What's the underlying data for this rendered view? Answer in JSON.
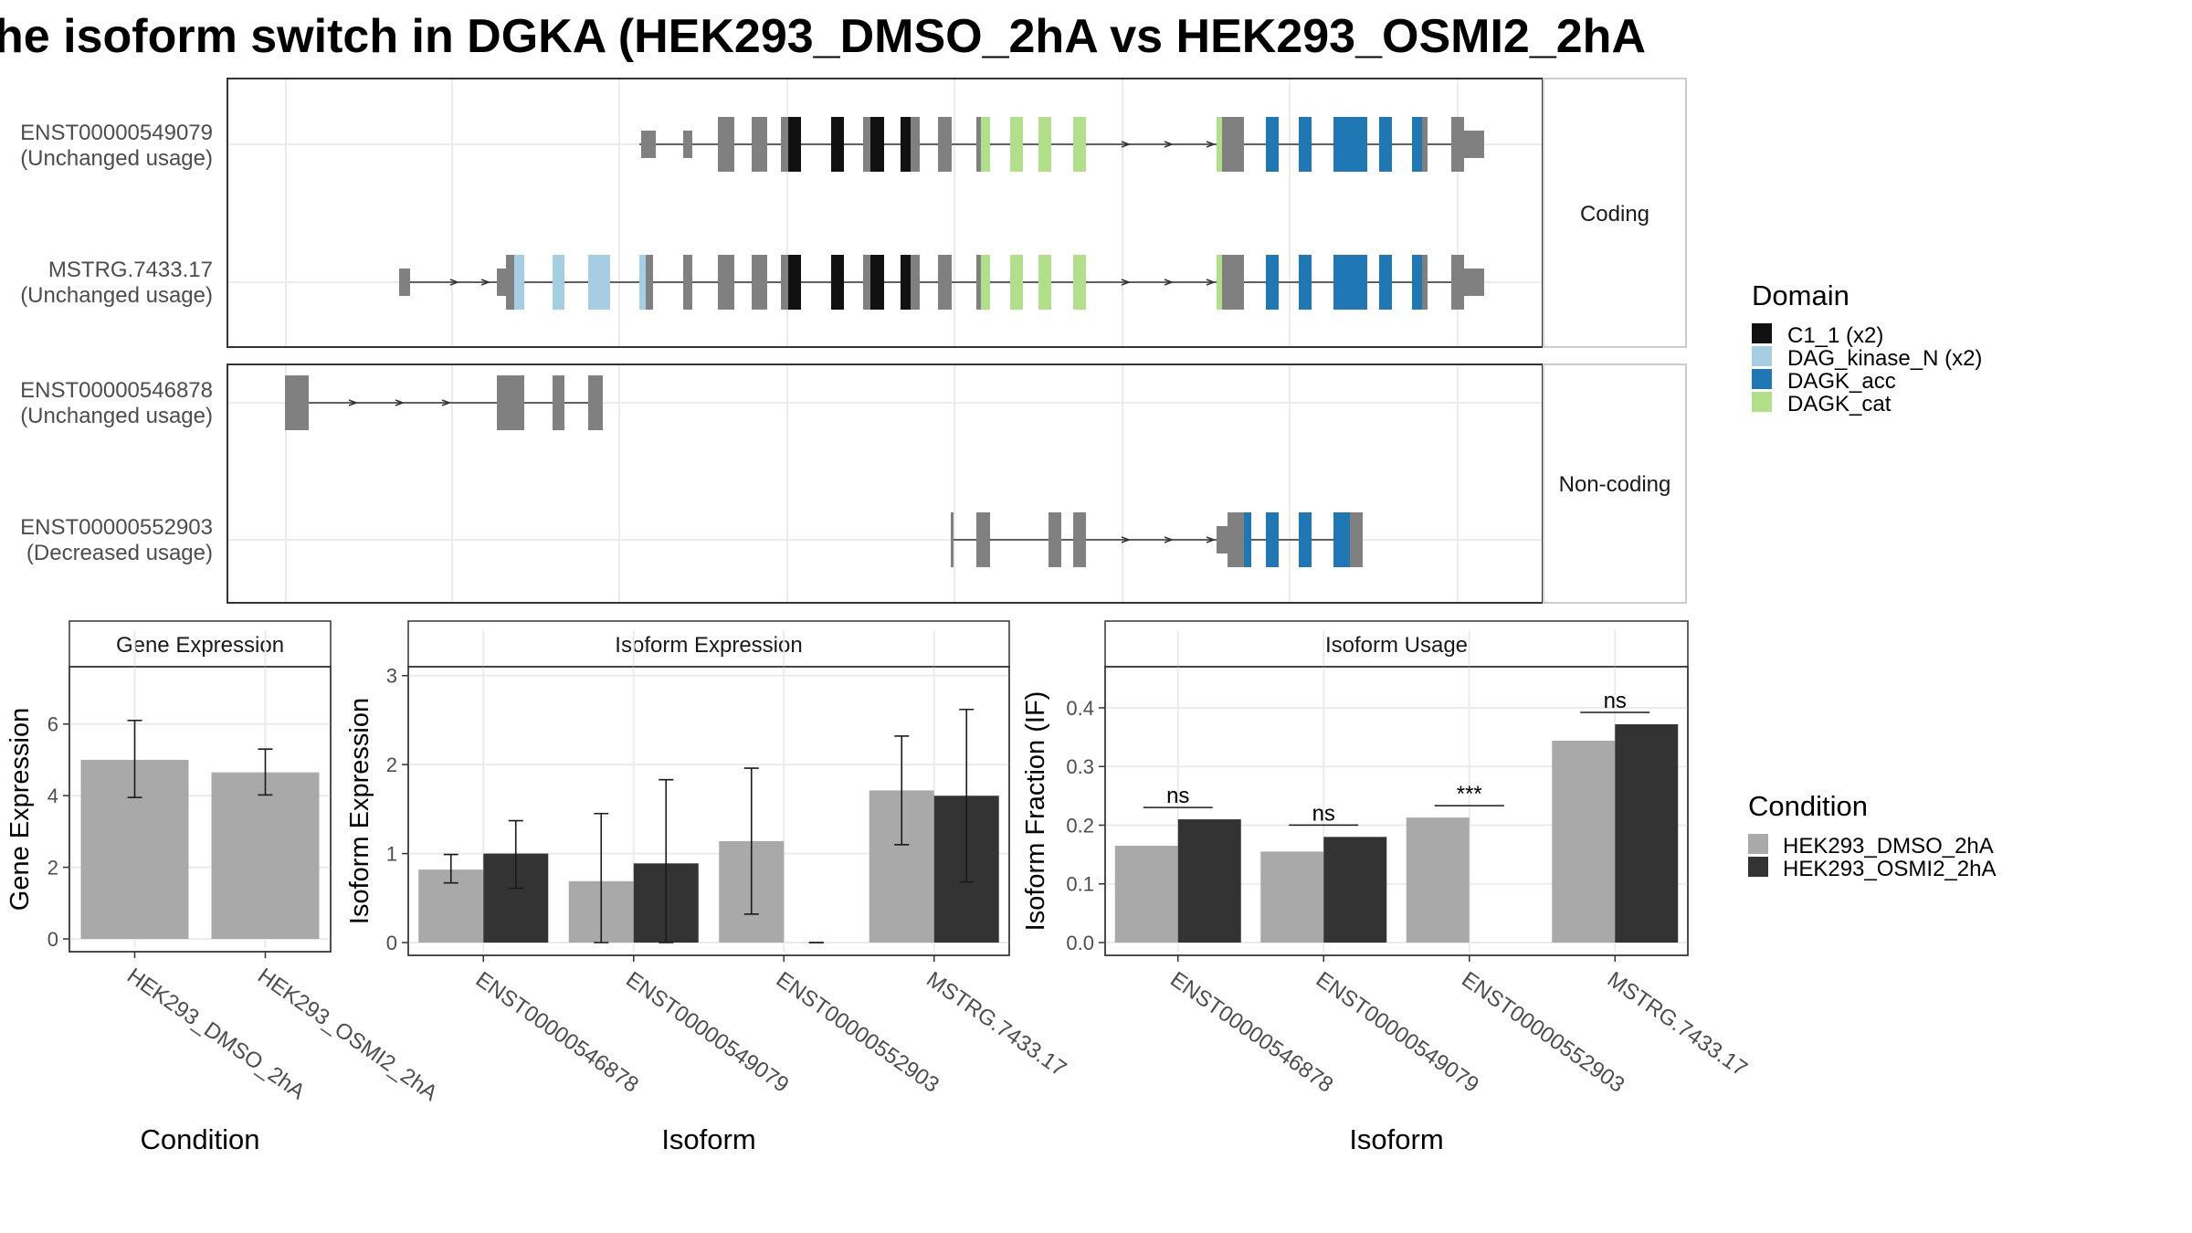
{
  "title": "he isoform switch in DGKA (HEK293_DMSO_2hA vs HEK293_OSMI2_2hA",
  "colors": {
    "exon_grey": "#808080",
    "C1_1": "#111111",
    "DAG_kinase_N": "#a6cee3",
    "DAGK_acc": "#1f78b4",
    "DAGK_cat": "#b2df8a",
    "cond_dmso": "#a9a9a9",
    "cond_osmi": "#333333",
    "grid": "#ebebeb",
    "strip_bg": "#ffffff",
    "panel_border": "#333333"
  },
  "transcripts": {
    "strips": [
      "Coding",
      "Non-coding"
    ],
    "rows": [
      {
        "id": "ENST00000549079",
        "usage": "(Unchanged usage)",
        "group": "Coding"
      },
      {
        "id": "MSTRG.7433.17",
        "usage": "(Unchanged usage)",
        "group": "Coding"
      },
      {
        "id": "ENST00000546878",
        "usage": "(Unchanged usage)",
        "group": "Non-coding"
      },
      {
        "id": "ENST00000552903",
        "usage": "(Decreased usage)",
        "group": "Non-coding"
      }
    ]
  },
  "legend_domain": {
    "title": "Domain",
    "items": [
      {
        "label": "C1_1 (x2)",
        "color": "#111111"
      },
      {
        "label": "DAG_kinase_N (x2)",
        "color": "#a6cee3"
      },
      {
        "label": "DAGK_acc",
        "color": "#1f78b4"
      },
      {
        "label": "DAGK_cat",
        "color": "#b2df8a"
      }
    ]
  },
  "legend_condition": {
    "title": "Condition",
    "items": [
      {
        "label": "HEK293_DMSO_2hA",
        "color": "#a9a9a9"
      },
      {
        "label": "HEK293_OSMI2_2hA",
        "color": "#333333"
      }
    ]
  },
  "chart_data": [
    {
      "type": "bar",
      "title": "Gene Expression",
      "xlabel": "Condition",
      "ylabel": "Gene Expression",
      "ylim": [
        0,
        7.6
      ],
      "yticks": [
        0,
        2,
        4,
        6
      ],
      "categories": [
        "HEK293_DMSO_2hA",
        "HEK293_OSMI2_2hA"
      ],
      "values": [
        5.0,
        4.65
      ],
      "err_low": [
        3.95,
        4.02
      ],
      "err_high": [
        6.1,
        5.3
      ]
    },
    {
      "type": "bar",
      "title": "Isoform Expression",
      "xlabel": "Isoform",
      "ylabel": "Isoform Expression",
      "ylim": [
        0,
        3.1
      ],
      "yticks": [
        0,
        1,
        2,
        3
      ],
      "categories": [
        "ENST00000546878",
        "ENST00000549079",
        "ENST00000552903",
        "MSTRG.7433.17"
      ],
      "series": [
        {
          "name": "HEK293_DMSO_2hA",
          "values": [
            0.82,
            0.69,
            1.14,
            1.71
          ],
          "err_low": [
            0.67,
            0.0,
            0.32,
            1.1
          ],
          "err_high": [
            0.99,
            1.45,
            1.96,
            2.32
          ]
        },
        {
          "name": "HEK293_OSMI2_2hA",
          "values": [
            1.0,
            0.89,
            0.0,
            1.65
          ],
          "err_low": [
            0.61,
            0.0,
            0.0,
            0.68
          ],
          "err_high": [
            1.37,
            1.83,
            0.0,
            2.62
          ]
        }
      ]
    },
    {
      "type": "bar",
      "title": "Isoform Usage",
      "xlabel": "Isoform",
      "ylabel": "Isoform Fraction (IF)",
      "ylim": [
        0,
        0.47
      ],
      "yticks": [
        0.0,
        0.1,
        0.2,
        0.3,
        0.4
      ],
      "categories": [
        "ENST00000546878",
        "ENST00000549079",
        "ENST00000552903",
        "MSTRG.7433.17"
      ],
      "series": [
        {
          "name": "HEK293_DMSO_2hA",
          "values": [
            0.165,
            0.155,
            0.213,
            0.344
          ]
        },
        {
          "name": "HEK293_OSMI2_2hA",
          "values": [
            0.21,
            0.18,
            0.0,
            0.372
          ]
        }
      ],
      "significance": [
        "ns",
        "ns",
        "***",
        "ns"
      ]
    }
  ]
}
